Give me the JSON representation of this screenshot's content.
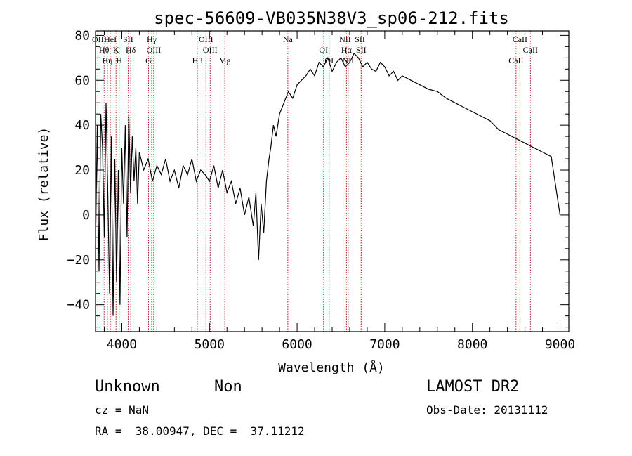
{
  "chart_data": {
    "type": "line",
    "title": "spec-56609-VB035N38V3_sp06-212.fits",
    "xlabel": "Wavelength (Å)",
    "ylabel": "Flux (relative)",
    "xlim": [
      3700,
      9100
    ],
    "ylim": [
      -52,
      82
    ],
    "xticks": [
      4000,
      5000,
      6000,
      7000,
      8000,
      9000
    ],
    "yticks": [
      -40,
      -20,
      0,
      20,
      40,
      60,
      80
    ],
    "ytick_labels": [
      "−40",
      "−20",
      "0",
      "20",
      "40",
      "60",
      "80"
    ],
    "grid": false,
    "series": [
      {
        "x": [
          3700,
          3720,
          3740,
          3760,
          3780,
          3800,
          3820,
          3840,
          3860,
          3880,
          3900,
          3920,
          3940,
          3960,
          3980,
          4000,
          4020,
          4040,
          4060,
          4080,
          4100,
          4120,
          4140,
          4160,
          4180,
          4200,
          4250,
          4300,
          4350,
          4400,
          4450,
          4500,
          4550,
          4600,
          4650,
          4700,
          4750,
          4800,
          4850,
          4900,
          4950,
          5000,
          5050,
          5100,
          5150,
          5200,
          5250,
          5300,
          5350,
          5400,
          5450,
          5500,
          5530,
          5560,
          5590,
          5620,
          5650,
          5680,
          5700,
          5730,
          5760,
          5800,
          5850,
          5900,
          5950,
          6000,
          6050,
          6100,
          6150,
          6200,
          6250,
          6300,
          6350,
          6400,
          6450,
          6500,
          6550,
          6600,
          6650,
          6700,
          6750,
          6800,
          6850,
          6900,
          6950,
          7000,
          7050,
          7100,
          7150,
          7200,
          7300,
          7400,
          7500,
          7600,
          7700,
          7800,
          7900,
          8000,
          8100,
          8200,
          8300,
          8400,
          8500,
          8600,
          8700,
          8800,
          8900,
          9000
        ],
        "y": [
          -15,
          40,
          -25,
          45,
          30,
          -10,
          50,
          10,
          -35,
          35,
          -45,
          25,
          -30,
          20,
          -40,
          30,
          5,
          40,
          -10,
          45,
          10,
          35,
          15,
          30,
          5,
          28,
          20,
          25,
          15,
          22,
          18,
          25,
          15,
          20,
          12,
          22,
          18,
          25,
          15,
          20,
          18,
          15,
          22,
          12,
          20,
          10,
          15,
          5,
          12,
          0,
          8,
          -5,
          10,
          -20,
          5,
          -8,
          15,
          25,
          30,
          40,
          35,
          45,
          50,
          55,
          52,
          58,
          60,
          62,
          65,
          62,
          68,
          66,
          70,
          64,
          68,
          70,
          66,
          68,
          72,
          70,
          66,
          68,
          65,
          64,
          68,
          66,
          62,
          64,
          60,
          62,
          60,
          58,
          56,
          55,
          52,
          50,
          48,
          46,
          44,
          42,
          38,
          36,
          34,
          32,
          30,
          28,
          26,
          0
        ]
      }
    ],
    "lines": [
      {
        "x": 3727,
        "labels": [
          "OII"
        ]
      },
      {
        "x": 3798,
        "labels": [
          "Hθ"
        ]
      },
      {
        "x": 3835,
        "labels": [
          "Hη"
        ]
      },
      {
        "x": 3869,
        "labels": [
          "HeI"
        ]
      },
      {
        "x": 3934,
        "labels": [
          "K"
        ]
      },
      {
        "x": 3970,
        "labels": [
          "H"
        ]
      },
      {
        "x": 4072,
        "labels": [
          "SII"
        ]
      },
      {
        "x": 4102,
        "labels": [
          "Hδ"
        ]
      },
      {
        "x": 4305,
        "labels": [
          "G"
        ]
      },
      {
        "x": 4341,
        "labels": [
          "Hγ"
        ]
      },
      {
        "x": 4364,
        "labels": [
          "OIII"
        ]
      },
      {
        "x": 4862,
        "labels": [
          "Hβ"
        ]
      },
      {
        "x": 4960,
        "labels": [
          "OIII"
        ]
      },
      {
        "x": 5008,
        "labels": [
          "OIII"
        ]
      },
      {
        "x": 5175,
        "labels": [
          "Mg"
        ]
      },
      {
        "x": 5894,
        "labels": [
          "Na"
        ]
      },
      {
        "x": 6302,
        "labels": [
          "OI"
        ]
      },
      {
        "x": 6366,
        "labels": [
          "OI"
        ]
      },
      {
        "x": 6548,
        "labels": [
          "NII"
        ]
      },
      {
        "x": 6563,
        "labels": [
          "Hα"
        ]
      },
      {
        "x": 6583,
        "labels": [
          "NII"
        ]
      },
      {
        "x": 6717,
        "labels": [
          "SII"
        ]
      },
      {
        "x": 6731,
        "labels": [
          "SII"
        ]
      },
      {
        "x": 8498,
        "labels": [
          "CaII"
        ]
      },
      {
        "x": 8542,
        "labels": [
          "CaII"
        ]
      },
      {
        "x": 8662,
        "labels": [
          "CaII"
        ]
      }
    ]
  },
  "info": {
    "class": "Unknown",
    "subclass": "Non",
    "survey": "LAMOST DR2",
    "cz": "cz = NaN",
    "obsdate": "Obs-Date: 20131112",
    "coords": "RA =  38.00947, DEC =  37.11212"
  }
}
